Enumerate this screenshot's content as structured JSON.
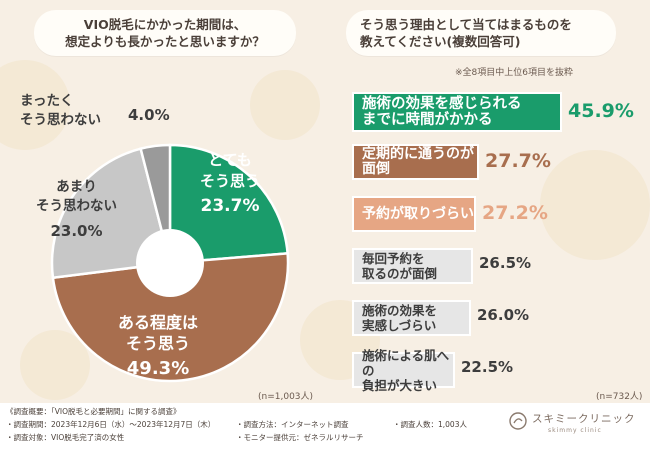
{
  "left_panel": {
    "question": [
      "VIO脱毛にかかった期間は、",
      "想定よりも長かったと思いますか？"
    ],
    "n_label": "(n=1,003人)"
  },
  "right_panel": {
    "question": [
      "そう思う理由として当てはまるものを",
      "教えてください(複数回答可)"
    ],
    "note": "※全8項目中上位6項目を抜粋",
    "n_label": "(n=732人)"
  },
  "chart_data": [
    {
      "type": "pie",
      "title": "VIO脱毛にかかった期間は、想定よりも長かったと思いますか？",
      "slices": [
        {
          "label": "とても\nそう思う",
          "value": 23.7,
          "pct": "23.7%",
          "color": "#1a9c6b"
        },
        {
          "label": "ある程度は\nそう思う",
          "value": 49.3,
          "pct": "49.3%",
          "color": "#a86e4e"
        },
        {
          "label": "あまり\nそう思わない",
          "value": 23.0,
          "pct": "23.0%",
          "color": "#c7c7c7"
        },
        {
          "label": "まったく\nそう思わない",
          "value": 4.0,
          "pct": "4.0%",
          "color": "#9a9a9a"
        }
      ]
    },
    {
      "type": "bar",
      "title": "そう思う理由として当てはまるものを教えてください(複数回答可)",
      "xlim": [
        0,
        45.9
      ],
      "bars": [
        {
          "label": "施術の効果を感じられる\nまでに時間がかかる",
          "value": 45.9,
          "pct": "45.9%",
          "color": "#1a9c6b",
          "text_color": "#ffffff",
          "pct_color": "#1a9c6b"
        },
        {
          "label": "定期的に通うのが面倒",
          "value": 27.7,
          "pct": "27.7%",
          "color": "#a86e4e",
          "text_color": "#ffffff",
          "pct_color": "#a86e4e"
        },
        {
          "label": "予約が取りづらい",
          "value": 27.2,
          "pct": "27.2%",
          "color": "#e6a684",
          "text_color": "#ffffff",
          "pct_color": "#e6a684"
        },
        {
          "label": "毎回予約を\n取るのが面倒",
          "value": 26.5,
          "pct": "26.5%",
          "color": "#e6e6e6",
          "text_color": "#3d3d3d",
          "pct_color": "#3d3d3d"
        },
        {
          "label": "施術の効果を\n実感しづらい",
          "value": 26.0,
          "pct": "26.0%",
          "color": "#e6e6e6",
          "text_color": "#3d3d3d",
          "pct_color": "#3d3d3d"
        },
        {
          "label": "施術による肌への\n負担が大きい",
          "value": 22.5,
          "pct": "22.5%",
          "color": "#e6e6e6",
          "text_color": "#3d3d3d",
          "pct_color": "#3d3d3d"
        }
      ]
    }
  ],
  "footer": {
    "summary": "《調査概要：「VIO脱毛と必要期間」に関する調査》",
    "period": "・調査期間：2023年12月6日（水）〜2023年12月7日（木）",
    "target": "・調査対象：VIO脱毛完了済の女性",
    "method": "・調査方法：インターネット調査",
    "monitor": "・モニター提供元：ゼネラルリサーチ",
    "count": "・調査人数：1,003人",
    "brand": "スキミークリニック",
    "brand_sub": "skimmy clinic"
  }
}
